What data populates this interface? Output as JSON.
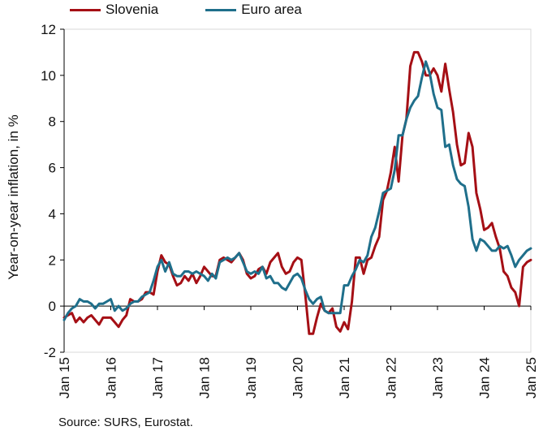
{
  "colors": {
    "slovenia": "#A50F15",
    "euro": "#1F6F8B",
    "axis": "#000000",
    "frame": "#d9d9d9"
  },
  "source": "Source: SURS, Eurostat.",
  "chart_data": {
    "type": "line",
    "title": "",
    "xlabel": "",
    "ylabel": "Year-on-year inflation, in %",
    "ylim": [
      -2,
      12
    ],
    "yticks": [
      -2,
      0,
      2,
      4,
      6,
      8,
      10,
      12
    ],
    "xticks": [
      "Jan 15",
      "Jan 16",
      "Jan 17",
      "Jan 18",
      "Jan 19",
      "Jan 20",
      "Jan 21",
      "Jan 22",
      "Jan 23",
      "Jan 24",
      "Jan 25"
    ],
    "legend_position": "top",
    "grid": false,
    "x": [
      "2015-01",
      "2015-02",
      "2015-03",
      "2015-04",
      "2015-05",
      "2015-06",
      "2015-07",
      "2015-08",
      "2015-09",
      "2015-10",
      "2015-11",
      "2015-12",
      "2016-01",
      "2016-02",
      "2016-03",
      "2016-04",
      "2016-05",
      "2016-06",
      "2016-07",
      "2016-08",
      "2016-09",
      "2016-10",
      "2016-11",
      "2016-12",
      "2017-01",
      "2017-02",
      "2017-03",
      "2017-04",
      "2017-05",
      "2017-06",
      "2017-07",
      "2017-08",
      "2017-09",
      "2017-10",
      "2017-11",
      "2017-12",
      "2018-01",
      "2018-02",
      "2018-03",
      "2018-04",
      "2018-05",
      "2018-06",
      "2018-07",
      "2018-08",
      "2018-09",
      "2018-10",
      "2018-11",
      "2018-12",
      "2019-01",
      "2019-02",
      "2019-03",
      "2019-04",
      "2019-05",
      "2019-06",
      "2019-07",
      "2019-08",
      "2019-09",
      "2019-10",
      "2019-11",
      "2019-12",
      "2020-01",
      "2020-02",
      "2020-03",
      "2020-04",
      "2020-05",
      "2020-06",
      "2020-07",
      "2020-08",
      "2020-09",
      "2020-10",
      "2020-11",
      "2020-12",
      "2021-01",
      "2021-02",
      "2021-03",
      "2021-04",
      "2021-05",
      "2021-06",
      "2021-07",
      "2021-08",
      "2021-09",
      "2021-10",
      "2021-11",
      "2021-12",
      "2022-01",
      "2022-02",
      "2022-03",
      "2022-04",
      "2022-05",
      "2022-06",
      "2022-07",
      "2022-08",
      "2022-09",
      "2022-10",
      "2022-11",
      "2022-12",
      "2023-01",
      "2023-02",
      "2023-03",
      "2023-04",
      "2023-05",
      "2023-06",
      "2023-07",
      "2023-08",
      "2023-09",
      "2023-10",
      "2023-11",
      "2023-12",
      "2024-01",
      "2024-02",
      "2024-03",
      "2024-04",
      "2024-05",
      "2024-06",
      "2024-07",
      "2024-08",
      "2024-09",
      "2024-10",
      "2024-11",
      "2024-12",
      "2025-01"
    ],
    "series": [
      {
        "name": "Slovenia",
        "color": "#A50F15",
        "values": [
          -0.5,
          -0.4,
          -0.3,
          -0.7,
          -0.5,
          -0.7,
          -0.5,
          -0.4,
          -0.6,
          -0.8,
          -0.5,
          -0.5,
          -0.5,
          -0.7,
          -0.9,
          -0.6,
          -0.4,
          0.3,
          0.2,
          0.2,
          0.3,
          0.6,
          0.6,
          0.5,
          1.5,
          2.2,
          1.9,
          1.8,
          1.3,
          0.9,
          1.0,
          1.3,
          1.1,
          1.4,
          1.0,
          1.3,
          1.7,
          1.5,
          1.3,
          1.3,
          2.0,
          2.1,
          2.0,
          1.9,
          2.1,
          2.3,
          2.0,
          1.4,
          1.2,
          1.3,
          1.6,
          1.7,
          1.4,
          1.9,
          2.1,
          2.3,
          1.7,
          1.4,
          1.5,
          1.9,
          2.1,
          2.0,
          0.5,
          -1.2,
          -1.2,
          -0.5,
          0.1,
          -0.2,
          -0.3,
          -0.1,
          -0.9,
          -1.1,
          -0.7,
          -1.0,
          0.2,
          2.1,
          2.1,
          1.4,
          2.0,
          2.1,
          2.6,
          3.0,
          4.6,
          5.0,
          5.8,
          6.9,
          5.4,
          7.4,
          8.1,
          10.4,
          11.0,
          11.0,
          10.6,
          10.0,
          10.0,
          10.3,
          10.0,
          9.3,
          10.5,
          9.4,
          8.4,
          7.0,
          6.1,
          6.2,
          7.5,
          6.9,
          4.9,
          4.2,
          3.3,
          3.4,
          3.6,
          3.0,
          2.5,
          1.5,
          1.3,
          0.8,
          0.6,
          0.0,
          1.7,
          1.9,
          2.0
        ]
      },
      {
        "name": "Euro area",
        "color": "#1F6F8B",
        "values": [
          -0.6,
          -0.3,
          -0.1,
          0.0,
          0.3,
          0.2,
          0.2,
          0.1,
          -0.1,
          0.1,
          0.1,
          0.2,
          0.3,
          -0.2,
          0.0,
          -0.2,
          -0.1,
          0.1,
          0.2,
          0.2,
          0.4,
          0.5,
          0.6,
          1.1,
          1.7,
          2.0,
          1.5,
          1.9,
          1.4,
          1.3,
          1.3,
          1.5,
          1.5,
          1.4,
          1.5,
          1.4,
          1.3,
          1.1,
          1.4,
          1.2,
          1.9,
          2.0,
          2.1,
          2.0,
          2.1,
          2.3,
          1.9,
          1.5,
          1.4,
          1.5,
          1.4,
          1.7,
          1.2,
          1.3,
          1.0,
          1.0,
          0.8,
          0.7,
          1.0,
          1.3,
          1.4,
          1.2,
          0.7,
          0.3,
          0.1,
          0.3,
          0.4,
          -0.2,
          -0.3,
          -0.3,
          -0.3,
          -0.3,
          0.9,
          0.9,
          1.3,
          1.6,
          2.0,
          1.9,
          2.2,
          3.0,
          3.4,
          4.1,
          4.9,
          5.0,
          5.1,
          5.9,
          7.4,
          7.4,
          8.1,
          8.6,
          8.9,
          9.1,
          9.9,
          10.6,
          10.1,
          9.2,
          8.6,
          8.5,
          6.9,
          7.0,
          6.1,
          5.5,
          5.3,
          5.2,
          4.3,
          2.9,
          2.4,
          2.9,
          2.8,
          2.6,
          2.4,
          2.4,
          2.6,
          2.5,
          2.6,
          2.2,
          1.7,
          2.0,
          2.2,
          2.4,
          2.5
        ]
      }
    ]
  }
}
